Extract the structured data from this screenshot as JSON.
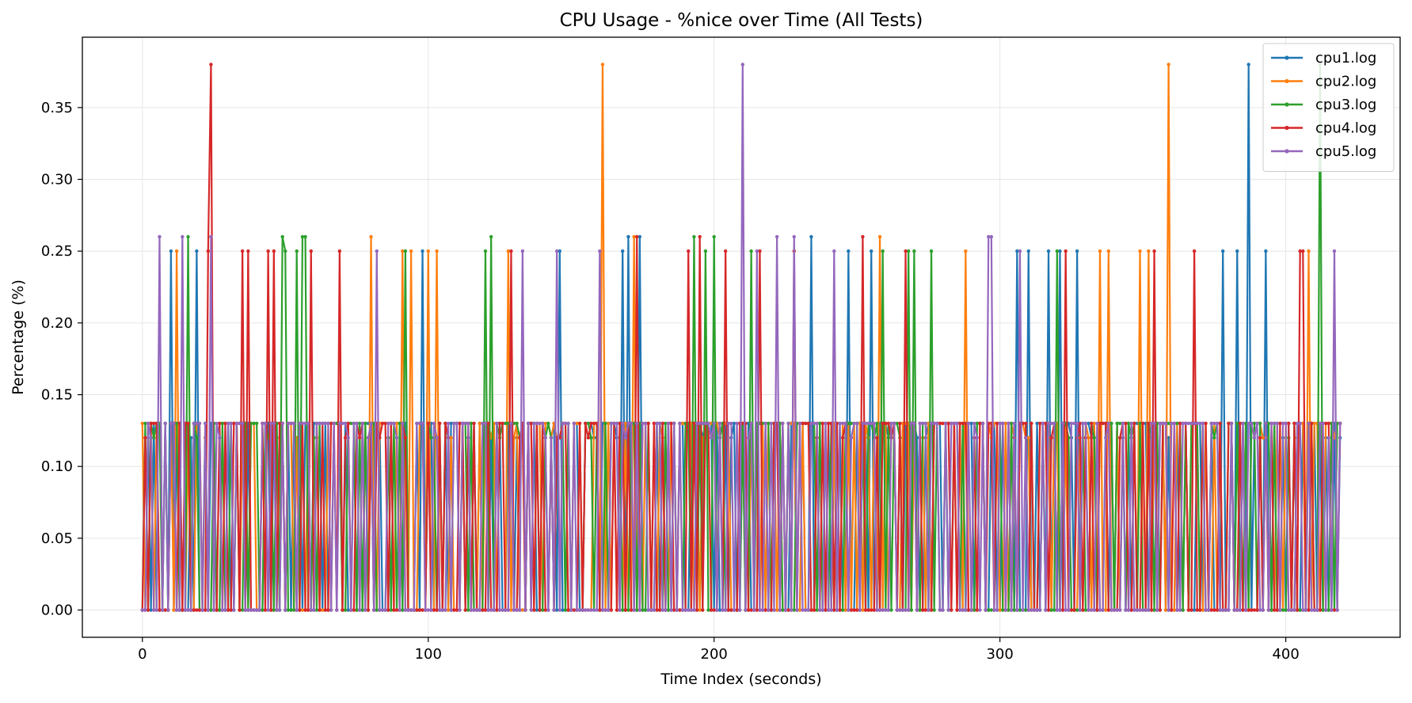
{
  "chart_data": {
    "type": "line",
    "title": "CPU Usage - %nice over Time (All Tests)",
    "xlabel": "Time Index (seconds)",
    "ylabel": "Percentage (%)",
    "xlim": [
      -21,
      440
    ],
    "ylim": [
      -0.019,
      0.399
    ],
    "x_ticks": [
      0,
      100,
      200,
      300,
      400
    ],
    "x_tick_labels": [
      "0",
      "100",
      "200",
      "300",
      "400"
    ],
    "y_ticks": [
      0.0,
      0.05,
      0.1,
      0.15,
      0.2,
      0.25,
      0.3,
      0.35
    ],
    "y_tick_labels": [
      "0.00",
      "0.05",
      "0.10",
      "0.15",
      "0.20",
      "0.25",
      "0.30",
      "0.35"
    ],
    "grid": true,
    "legend_position": "top-right",
    "x_range": [
      0,
      419
    ],
    "series": [
      {
        "name": "cpu1.log",
        "color": "#1f77b4",
        "baseline": 0.13,
        "length": 420,
        "spikes": [
          [
            10,
            0.25
          ],
          [
            19,
            0.25
          ],
          [
            98,
            0.25
          ],
          [
            146,
            0.25
          ],
          [
            168,
            0.25
          ],
          [
            170,
            0.26
          ],
          [
            174,
            0.26
          ],
          [
            234,
            0.26
          ],
          [
            247,
            0.25
          ],
          [
            255,
            0.25
          ],
          [
            306,
            0.25
          ],
          [
            310,
            0.25
          ],
          [
            317,
            0.25
          ],
          [
            321,
            0.25
          ],
          [
            327,
            0.25
          ],
          [
            378,
            0.25
          ],
          [
            383,
            0.25
          ],
          [
            387,
            0.38
          ],
          [
            393,
            0.25
          ]
        ]
      },
      {
        "name": "cpu2.log",
        "color": "#ff7f0e",
        "baseline": 0.13,
        "length": 420,
        "spikes": [
          [
            12,
            0.25
          ],
          [
            80,
            0.26
          ],
          [
            91,
            0.25
          ],
          [
            94,
            0.25
          ],
          [
            100,
            0.25
          ],
          [
            103,
            0.25
          ],
          [
            128,
            0.25
          ],
          [
            161,
            0.38
          ],
          [
            172,
            0.26
          ],
          [
            258,
            0.26
          ],
          [
            288,
            0.25
          ],
          [
            335,
            0.25
          ],
          [
            338,
            0.25
          ],
          [
            349,
            0.25
          ],
          [
            352,
            0.25
          ],
          [
            359,
            0.38
          ],
          [
            408,
            0.25
          ]
        ]
      },
      {
        "name": "cpu3.log",
        "color": "#2ca02c",
        "baseline": 0.13,
        "length": 420,
        "spikes": [
          [
            16,
            0.26
          ],
          [
            49,
            0.26
          ],
          [
            50,
            0.25
          ],
          [
            54,
            0.25
          ],
          [
            56,
            0.26
          ],
          [
            57,
            0.26
          ],
          [
            92,
            0.25
          ],
          [
            120,
            0.25
          ],
          [
            122,
            0.26
          ],
          [
            193,
            0.26
          ],
          [
            197,
            0.25
          ],
          [
            200,
            0.26
          ],
          [
            213,
            0.25
          ],
          [
            259,
            0.25
          ],
          [
            268,
            0.25
          ],
          [
            270,
            0.25
          ],
          [
            276,
            0.25
          ],
          [
            320,
            0.25
          ],
          [
            412,
            0.38
          ]
        ]
      },
      {
        "name": "cpu4.log",
        "color": "#d62728",
        "baseline": 0.13,
        "length": 420,
        "spikes": [
          [
            23,
            0.25
          ],
          [
            24,
            0.38
          ],
          [
            35,
            0.25
          ],
          [
            37,
            0.25
          ],
          [
            44,
            0.25
          ],
          [
            46,
            0.25
          ],
          [
            59,
            0.25
          ],
          [
            69,
            0.25
          ],
          [
            129,
            0.25
          ],
          [
            173,
            0.26
          ],
          [
            191,
            0.25
          ],
          [
            195,
            0.26
          ],
          [
            204,
            0.25
          ],
          [
            216,
            0.25
          ],
          [
            228,
            0.25
          ],
          [
            252,
            0.26
          ],
          [
            267,
            0.25
          ],
          [
            323,
            0.25
          ],
          [
            354,
            0.25
          ],
          [
            368,
            0.25
          ],
          [
            405,
            0.25
          ],
          [
            406,
            0.25
          ]
        ]
      },
      {
        "name": "cpu5.log",
        "color": "#9467bd",
        "baseline": 0.13,
        "length": 420,
        "spikes": [
          [
            6,
            0.26
          ],
          [
            14,
            0.26
          ],
          [
            24,
            0.26
          ],
          [
            82,
            0.25
          ],
          [
            133,
            0.25
          ],
          [
            145,
            0.25
          ],
          [
            160,
            0.25
          ],
          [
            210,
            0.38
          ],
          [
            215,
            0.25
          ],
          [
            222,
            0.26
          ],
          [
            228,
            0.26
          ],
          [
            242,
            0.25
          ],
          [
            296,
            0.26
          ],
          [
            297,
            0.26
          ],
          [
            307,
            0.25
          ],
          [
            417,
            0.25
          ]
        ]
      }
    ]
  }
}
